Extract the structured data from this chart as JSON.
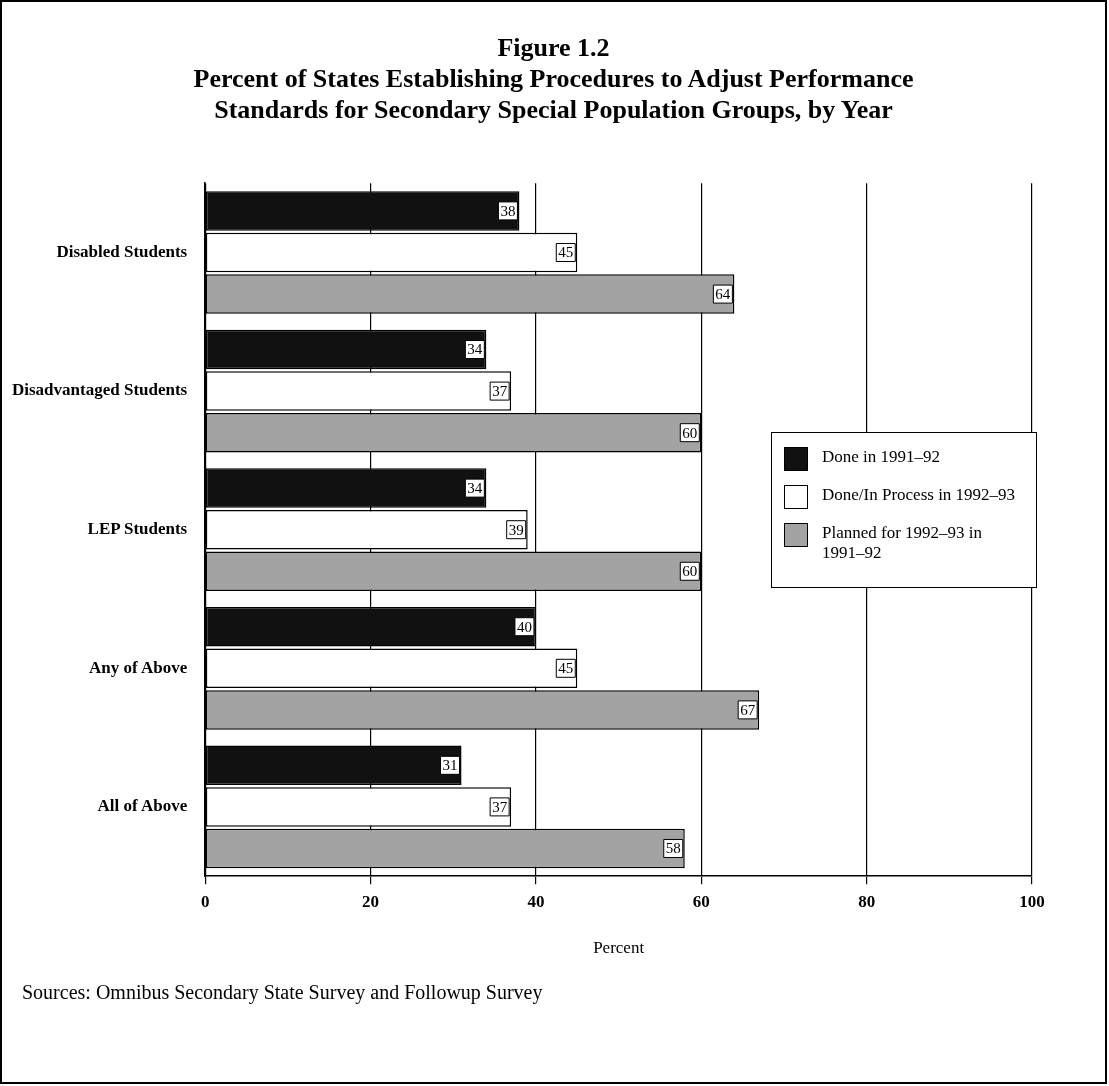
{
  "chart_data": {
    "type": "bar",
    "orientation": "horizontal",
    "title": "Figure 1.2",
    "subtitle": "Percent of States Establishing Procedures to Adjust Performance Standards for Secondary Special Population Groups, by Year",
    "xlabel": "Percent",
    "categories": [
      "Disabled Students",
      "Disadvantaged Students",
      "LEP Students",
      "Any of Above",
      "All of Above"
    ],
    "series": [
      {
        "name": "Done in 1991–92",
        "color": "#111111",
        "values": [
          38,
          34,
          34,
          40,
          31
        ]
      },
      {
        "name": "Done/In Process in 1992–93",
        "color": "#ffffff",
        "values": [
          45,
          37,
          39,
          45,
          37
        ]
      },
      {
        "name": "Planned for 1992–93 in 1991–92",
        "color": "#a3a3a3",
        "values": [
          64,
          60,
          60,
          67,
          58
        ]
      }
    ],
    "xlim": [
      0,
      100
    ],
    "xticks": [
      0,
      20,
      40,
      60,
      80,
      100
    ],
    "grid": "x",
    "legend": "right",
    "data_labels": true,
    "annotations": [
      "Sources: Omnibus Secondary State Survey and Followup Survey"
    ]
  }
}
